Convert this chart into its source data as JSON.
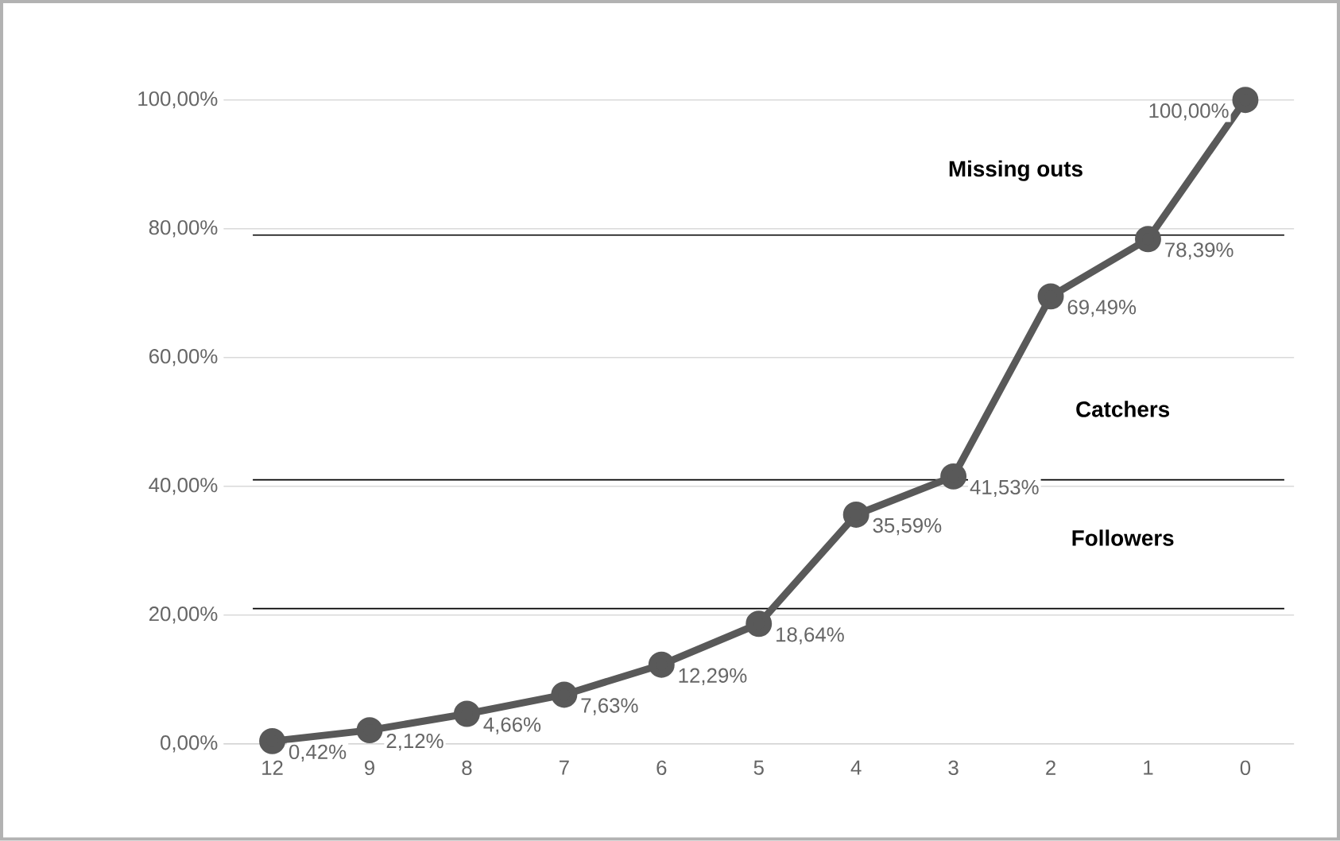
{
  "chart_data": {
    "type": "line",
    "categories": [
      "12",
      "9",
      "8",
      "7",
      "6",
      "5",
      "4",
      "3",
      "2",
      "1",
      "0"
    ],
    "series": [
      {
        "color": "#595959",
        "values": [
          0.42,
          2.12,
          4.66,
          7.63,
          12.29,
          18.64,
          35.59,
          41.53,
          69.49,
          78.39,
          100
        ],
        "value_labels": [
          "0,42%",
          "2,12%",
          "4,66%",
          "7,63%",
          "12,29%",
          "18,64%",
          "35,59%",
          "41,53%",
          "69,49%",
          "78,39%",
          "100,00%"
        ]
      }
    ],
    "ylim": [
      0,
      100
    ],
    "yticks": [
      {
        "value": 0,
        "label": "0,00%"
      },
      {
        "value": 20,
        "label": "20,00%"
      },
      {
        "value": 40,
        "label": "40,00%"
      },
      {
        "value": 60,
        "label": "60,00%"
      },
      {
        "value": 80,
        "label": "80,00%"
      },
      {
        "value": 100,
        "label": "100,00%"
      }
    ],
    "ref_lines": [
      {
        "axis": "y",
        "value": 79,
        "color": "#000000"
      },
      {
        "axis": "y",
        "value": 41,
        "color": "#000000"
      },
      {
        "axis": "y",
        "value": 21,
        "color": "#000000"
      }
    ],
    "annotations": [
      "Missing outs",
      "Catchers",
      "Followers"
    ],
    "grid": "y",
    "marker": "circle",
    "line_style": "solid"
  }
}
